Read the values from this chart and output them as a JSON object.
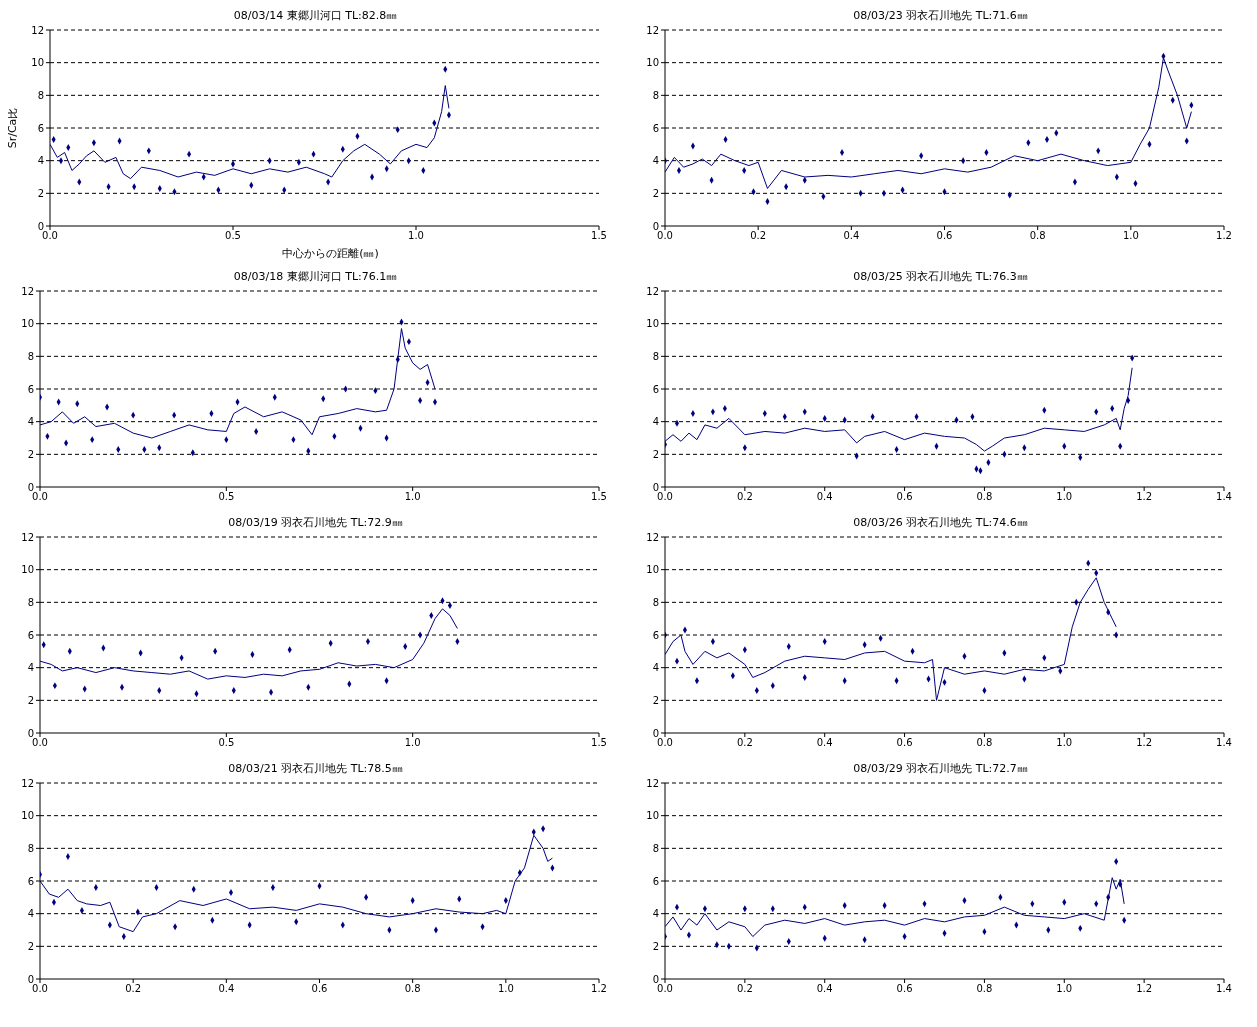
{
  "chart_data": [
    {
      "type": "line",
      "title": "08/03/14 東郷川河口 TL:82.8㎜",
      "xlabel": "中心からの距離(㎜)",
      "ylabel": "Sr/Ca比",
      "xlim": [
        0,
        1.5
      ],
      "xticks": [
        {
          "value": 0,
          "label": "0.0"
        },
        {
          "value": 0.5,
          "label": "0.5"
        },
        {
          "value": 1,
          "label": "1.0"
        },
        {
          "value": 1.5,
          "label": "1.5"
        }
      ],
      "ylim": [
        0,
        12
      ],
      "yticks": [
        0,
        2,
        4,
        6,
        8,
        10,
        12
      ],
      "grid": "y",
      "series": [
        {
          "color": "#000080",
          "marker": "none",
          "x": [
            0,
            0.02,
            0.04,
            0.06,
            0.08,
            0.1,
            0.12,
            0.15,
            0.18,
            0.2,
            0.22,
            0.25,
            0.3,
            0.35,
            0.4,
            0.45,
            0.5,
            0.55,
            0.6,
            0.65,
            0.7,
            0.75,
            0.77,
            0.8,
            0.83,
            0.86,
            0.9,
            0.93,
            0.96,
            1.0,
            1.03,
            1.05,
            1.07,
            1.08,
            1.09
          ],
          "values": [
            5.0,
            4.2,
            4.5,
            3.4,
            3.8,
            4.3,
            4.6,
            3.9,
            4.2,
            3.2,
            2.9,
            3.6,
            3.4,
            3.0,
            3.3,
            3.1,
            3.5,
            3.2,
            3.5,
            3.3,
            3.6,
            3.2,
            3.0,
            4.0,
            4.6,
            5.0,
            4.4,
            3.8,
            4.6,
            5.0,
            4.8,
            5.4,
            7.0,
            8.6,
            7.2
          ]
        },
        {
          "type": "scatter",
          "color": "#000080",
          "marker": "diamond",
          "x": [
            0.01,
            0.03,
            0.05,
            0.08,
            0.12,
            0.16,
            0.19,
            0.23,
            0.27,
            0.3,
            0.34,
            0.38,
            0.42,
            0.46,
            0.5,
            0.55,
            0.6,
            0.64,
            0.68,
            0.72,
            0.76,
            0.8,
            0.84,
            0.88,
            0.92,
            0.95,
            0.98,
            1.02,
            1.05,
            1.08,
            1.09
          ],
          "values": [
            5.3,
            4.0,
            4.8,
            2.7,
            5.1,
            2.4,
            5.2,
            2.4,
            4.6,
            2.3,
            2.1,
            4.4,
            3.0,
            2.2,
            3.8,
            2.5,
            4.0,
            2.2,
            3.9,
            4.4,
            2.7,
            4.7,
            5.5,
            3.0,
            3.5,
            5.9,
            4.0,
            3.4,
            6.3,
            9.6,
            6.8
          ]
        }
      ]
    },
    {
      "type": "line",
      "title": "08/03/23 羽衣石川地先 TL:71.6㎜",
      "xlim": [
        0,
        1.2
      ],
      "xticks": [
        {
          "value": 0,
          "label": "0.0"
        },
        {
          "value": 0.2,
          "label": "0.2"
        },
        {
          "value": 0.4,
          "label": "0.4"
        },
        {
          "value": 0.6,
          "label": "0.6"
        },
        {
          "value": 0.8,
          "label": "0.8"
        },
        {
          "value": 1,
          "label": "1.0"
        },
        {
          "value": 1.2,
          "label": "1.2"
        }
      ],
      "ylim": [
        0,
        12
      ],
      "yticks": [
        0,
        2,
        4,
        6,
        8,
        10,
        12
      ],
      "grid": "y",
      "series": [
        {
          "color": "#000080",
          "marker": "none",
          "x": [
            0,
            0.02,
            0.04,
            0.06,
            0.08,
            0.1,
            0.12,
            0.15,
            0.18,
            0.2,
            0.22,
            0.25,
            0.3,
            0.35,
            0.4,
            0.45,
            0.5,
            0.55,
            0.6,
            0.65,
            0.7,
            0.75,
            0.8,
            0.85,
            0.9,
            0.95,
            1.0,
            1.02,
            1.04,
            1.06,
            1.07,
            1.08,
            1.1,
            1.12,
            1.13
          ],
          "values": [
            3.3,
            4.2,
            3.6,
            3.8,
            4.1,
            3.7,
            4.4,
            4.0,
            3.7,
            3.9,
            2.3,
            3.4,
            3.0,
            3.1,
            3.0,
            3.2,
            3.4,
            3.2,
            3.5,
            3.3,
            3.6,
            4.3,
            4.0,
            4.4,
            4.0,
            3.7,
            3.9,
            5.0,
            6.0,
            8.5,
            10.3,
            9.5,
            8.0,
            6.0,
            7.0
          ]
        },
        {
          "type": "scatter",
          "color": "#000080",
          "marker": "diamond",
          "x": [
            0,
            0.03,
            0.06,
            0.1,
            0.13,
            0.17,
            0.19,
            0.22,
            0.26,
            0.3,
            0.34,
            0.38,
            0.42,
            0.47,
            0.51,
            0.55,
            0.6,
            0.64,
            0.69,
            0.74,
            0.78,
            0.82,
            0.84,
            0.88,
            0.93,
            0.97,
            1.01,
            1.04,
            1.07,
            1.09,
            1.12,
            1.13
          ],
          "values": [
            4.0,
            3.4,
            4.9,
            2.8,
            5.3,
            3.4,
            2.1,
            1.5,
            2.4,
            2.8,
            1.8,
            4.5,
            2.0,
            2.0,
            2.2,
            4.3,
            2.1,
            4.0,
            4.5,
            1.9,
            5.1,
            5.3,
            5.7,
            2.7,
            4.6,
            3.0,
            2.6,
            5.0,
            10.4,
            7.7,
            5.2,
            7.4
          ]
        }
      ]
    },
    {
      "type": "line",
      "title": "08/03/18 東郷川河口 TL:76.1㎜",
      "xlim": [
        0,
        1.5
      ],
      "xticks": [
        {
          "value": 0,
          "label": "0.0"
        },
        {
          "value": 0.5,
          "label": "0.5"
        },
        {
          "value": 1,
          "label": "1.0"
        },
        {
          "value": 1.5,
          "label": "1.5"
        }
      ],
      "ylim": [
        0,
        12
      ],
      "yticks": [
        0,
        2,
        4,
        6,
        8,
        10,
        12
      ],
      "grid": "y",
      "series": [
        {
          "color": "#000080",
          "marker": "none",
          "x": [
            0,
            0.03,
            0.06,
            0.09,
            0.12,
            0.15,
            0.2,
            0.25,
            0.3,
            0.35,
            0.4,
            0.45,
            0.5,
            0.52,
            0.55,
            0.6,
            0.65,
            0.7,
            0.73,
            0.75,
            0.8,
            0.85,
            0.9,
            0.93,
            0.95,
            0.97,
            0.98,
            1.0,
            1.02,
            1.04,
            1.06
          ],
          "values": [
            3.8,
            4.0,
            4.6,
            3.9,
            4.3,
            3.7,
            3.9,
            3.3,
            3.0,
            3.4,
            3.8,
            3.5,
            3.4,
            4.5,
            4.9,
            4.3,
            4.6,
            4.1,
            3.2,
            4.3,
            4.5,
            4.8,
            4.6,
            4.7,
            6.0,
            9.7,
            8.5,
            7.6,
            7.2,
            7.5,
            6.0
          ]
        },
        {
          "type": "scatter",
          "color": "#000080",
          "marker": "diamond",
          "x": [
            0.0,
            0.02,
            0.05,
            0.07,
            0.1,
            0.14,
            0.18,
            0.21,
            0.25,
            0.28,
            0.32,
            0.36,
            0.41,
            0.46,
            0.5,
            0.53,
            0.58,
            0.63,
            0.68,
            0.72,
            0.76,
            0.79,
            0.82,
            0.86,
            0.9,
            0.93,
            0.96,
            0.97,
            0.99,
            1.02,
            1.04,
            1.06
          ],
          "values": [
            5.5,
            3.1,
            5.2,
            2.7,
            5.1,
            2.9,
            4.9,
            2.3,
            4.4,
            2.3,
            2.4,
            4.4,
            2.1,
            4.5,
            2.9,
            5.2,
            3.4,
            5.5,
            2.9,
            2.2,
            5.4,
            3.1,
            6.0,
            3.6,
            5.9,
            3.0,
            7.8,
            10.1,
            8.9,
            5.3,
            6.4,
            5.2
          ]
        }
      ]
    },
    {
      "type": "line",
      "title": "08/03/25 羽衣石川地先 TL:76.3㎜",
      "xlim": [
        0,
        1.4
      ],
      "xticks": [
        {
          "value": 0,
          "label": "0.0"
        },
        {
          "value": 0.2,
          "label": "0.2"
        },
        {
          "value": 0.4,
          "label": "0.4"
        },
        {
          "value": 0.6,
          "label": "0.6"
        },
        {
          "value": 0.8,
          "label": "0.8"
        },
        {
          "value": 1,
          "label": "1.0"
        },
        {
          "value": 1.2,
          "label": "1.2"
        },
        {
          "value": 1.4,
          "label": "1.4"
        }
      ],
      "ylim": [
        0,
        12
      ],
      "yticks": [
        0,
        2,
        4,
        6,
        8,
        10,
        12
      ],
      "grid": "y",
      "series": [
        {
          "color": "#000080",
          "marker": "none",
          "x": [
            0,
            0.02,
            0.04,
            0.06,
            0.08,
            0.1,
            0.13,
            0.16,
            0.2,
            0.25,
            0.3,
            0.35,
            0.4,
            0.45,
            0.48,
            0.5,
            0.55,
            0.6,
            0.65,
            0.7,
            0.75,
            0.78,
            0.8,
            0.82,
            0.85,
            0.9,
            0.95,
            1.0,
            1.05,
            1.1,
            1.13,
            1.14,
            1.15,
            1.16,
            1.17
          ],
          "values": [
            2.8,
            3.2,
            2.8,
            3.3,
            2.9,
            3.8,
            3.6,
            4.2,
            3.2,
            3.4,
            3.3,
            3.6,
            3.4,
            3.5,
            2.7,
            3.1,
            3.4,
            2.9,
            3.3,
            3.1,
            3.0,
            2.6,
            2.2,
            2.5,
            3.0,
            3.2,
            3.6,
            3.5,
            3.4,
            3.8,
            4.2,
            3.5,
            4.8,
            5.6,
            7.3
          ]
        },
        {
          "type": "scatter",
          "color": "#000080",
          "marker": "diamond",
          "x": [
            0,
            0.03,
            0.07,
            0.12,
            0.15,
            0.2,
            0.25,
            0.3,
            0.35,
            0.4,
            0.45,
            0.48,
            0.52,
            0.58,
            0.63,
            0.68,
            0.73,
            0.77,
            0.78,
            0.79,
            0.81,
            0.85,
            0.9,
            0.95,
            1.0,
            1.04,
            1.08,
            1.12,
            1.14,
            1.16,
            1.17
          ],
          "values": [
            2.6,
            3.9,
            4.5,
            4.6,
            4.8,
            2.4,
            4.5,
            4.3,
            4.6,
            4.2,
            4.1,
            1.9,
            4.3,
            2.3,
            4.3,
            2.5,
            4.1,
            4.3,
            1.1,
            1.0,
            1.5,
            2.0,
            2.4,
            4.7,
            2.5,
            1.8,
            4.6,
            4.8,
            2.5,
            5.3,
            7.9
          ]
        }
      ]
    },
    {
      "type": "line",
      "title": "08/03/19 羽衣石川地先 TL:72.9㎜",
      "xlim": [
        0,
        1.5
      ],
      "xticks": [
        {
          "value": 0,
          "label": "0.0"
        },
        {
          "value": 0.5,
          "label": "0.5"
        },
        {
          "value": 1,
          "label": "1.0"
        },
        {
          "value": 1.5,
          "label": "1.5"
        }
      ],
      "ylim": [
        0,
        12
      ],
      "yticks": [
        0,
        2,
        4,
        6,
        8,
        10,
        12
      ],
      "grid": "y",
      "series": [
        {
          "color": "#000080",
          "marker": "none",
          "x": [
            0,
            0.03,
            0.06,
            0.1,
            0.15,
            0.2,
            0.25,
            0.3,
            0.35,
            0.4,
            0.45,
            0.5,
            0.55,
            0.6,
            0.65,
            0.7,
            0.75,
            0.8,
            0.85,
            0.9,
            0.95,
            1.0,
            1.03,
            1.06,
            1.08,
            1.1,
            1.12
          ],
          "values": [
            4.4,
            4.2,
            3.8,
            4.0,
            3.7,
            4.0,
            3.8,
            3.7,
            3.6,
            3.8,
            3.3,
            3.5,
            3.4,
            3.6,
            3.5,
            3.8,
            3.9,
            4.3,
            4.1,
            4.2,
            4.0,
            4.5,
            5.5,
            7.0,
            7.6,
            7.2,
            6.4
          ]
        },
        {
          "type": "scatter",
          "color": "#000080",
          "marker": "diamond",
          "x": [
            0.01,
            0.04,
            0.08,
            0.12,
            0.17,
            0.22,
            0.27,
            0.32,
            0.38,
            0.42,
            0.47,
            0.52,
            0.57,
            0.62,
            0.67,
            0.72,
            0.78,
            0.83,
            0.88,
            0.93,
            0.98,
            1.02,
            1.05,
            1.08,
            1.1,
            1.12
          ],
          "values": [
            5.4,
            2.9,
            5.0,
            2.7,
            5.2,
            2.8,
            4.9,
            2.6,
            4.6,
            2.4,
            5.0,
            2.6,
            4.8,
            2.5,
            5.1,
            2.8,
            5.5,
            3.0,
            5.6,
            3.2,
            5.3,
            6.0,
            7.2,
            8.1,
            7.8,
            5.6
          ]
        }
      ]
    },
    {
      "type": "line",
      "title": "08/03/26 羽衣石川地先 TL:74.6㎜",
      "xlim": [
        0,
        1.4
      ],
      "xticks": [
        {
          "value": 0,
          "label": "0.0"
        },
        {
          "value": 0.2,
          "label": "0.2"
        },
        {
          "value": 0.4,
          "label": "0.4"
        },
        {
          "value": 0.6,
          "label": "0.6"
        },
        {
          "value": 0.8,
          "label": "0.8"
        },
        {
          "value": 1,
          "label": "1.0"
        },
        {
          "value": 1.2,
          "label": "1.2"
        },
        {
          "value": 1.4,
          "label": "1.4"
        }
      ],
      "ylim": [
        0,
        12
      ],
      "yticks": [
        0,
        2,
        4,
        6,
        8,
        10,
        12
      ],
      "grid": "y",
      "series": [
        {
          "color": "#000080",
          "marker": "none",
          "x": [
            0,
            0.02,
            0.04,
            0.05,
            0.07,
            0.1,
            0.13,
            0.16,
            0.2,
            0.22,
            0.25,
            0.3,
            0.35,
            0.4,
            0.45,
            0.5,
            0.55,
            0.6,
            0.65,
            0.67,
            0.68,
            0.7,
            0.75,
            0.8,
            0.85,
            0.9,
            0.95,
            1.0,
            1.02,
            1.04,
            1.06,
            1.08,
            1.1,
            1.12,
            1.13
          ],
          "values": [
            4.8,
            5.6,
            6.0,
            5.0,
            4.2,
            5.0,
            4.6,
            4.9,
            4.2,
            3.4,
            3.7,
            4.4,
            4.7,
            4.6,
            4.5,
            4.9,
            5.0,
            4.4,
            4.3,
            4.5,
            2.0,
            4.0,
            3.6,
            3.8,
            3.6,
            3.9,
            3.8,
            4.2,
            6.5,
            8.0,
            8.8,
            9.5,
            8.0,
            7.0,
            6.5
          ]
        },
        {
          "type": "scatter",
          "color": "#000080",
          "marker": "diamond",
          "x": [
            0,
            0.03,
            0.05,
            0.08,
            0.12,
            0.17,
            0.2,
            0.23,
            0.27,
            0.31,
            0.35,
            0.4,
            0.45,
            0.5,
            0.54,
            0.58,
            0.62,
            0.66,
            0.7,
            0.75,
            0.8,
            0.85,
            0.9,
            0.95,
            0.99,
            1.03,
            1.06,
            1.08,
            1.11,
            1.13
          ],
          "values": [
            6.0,
            4.4,
            6.3,
            3.2,
            5.6,
            3.5,
            5.1,
            2.6,
            2.9,
            5.3,
            3.4,
            5.6,
            3.2,
            5.4,
            5.8,
            3.2,
            5.0,
            3.3,
            3.1,
            4.7,
            2.6,
            4.9,
            3.3,
            4.6,
            3.8,
            8.0,
            10.4,
            9.8,
            7.4,
            6.0
          ]
        }
      ]
    },
    {
      "type": "line",
      "title": "08/03/21 羽衣石川地先 TL:78.5㎜",
      "xlim": [
        0,
        1.2
      ],
      "xticks": [
        {
          "value": 0,
          "label": "0.0"
        },
        {
          "value": 0.2,
          "label": "0.2"
        },
        {
          "value": 0.4,
          "label": "0.4"
        },
        {
          "value": 0.6,
          "label": "0.6"
        },
        {
          "value": 0.8,
          "label": "0.8"
        },
        {
          "value": 1,
          "label": "1.0"
        },
        {
          "value": 1.2,
          "label": "1.2"
        }
      ],
      "ylim": [
        0,
        12
      ],
      "yticks": [
        0,
        2,
        4,
        6,
        8,
        10,
        12
      ],
      "grid": "y",
      "series": [
        {
          "color": "#000080",
          "marker": "none",
          "x": [
            0,
            0.02,
            0.04,
            0.06,
            0.08,
            0.1,
            0.13,
            0.15,
            0.17,
            0.2,
            0.22,
            0.25,
            0.3,
            0.35,
            0.4,
            0.45,
            0.5,
            0.55,
            0.6,
            0.65,
            0.7,
            0.75,
            0.8,
            0.85,
            0.9,
            0.95,
            0.98,
            1.0,
            1.02,
            1.04,
            1.06,
            1.08,
            1.09,
            1.1
          ],
          "values": [
            6.0,
            5.2,
            5.0,
            5.5,
            4.8,
            4.6,
            4.5,
            4.7,
            3.2,
            2.9,
            3.8,
            4.0,
            4.8,
            4.5,
            4.9,
            4.3,
            4.4,
            4.2,
            4.6,
            4.4,
            4.0,
            3.8,
            4.0,
            4.3,
            4.1,
            4.0,
            4.2,
            4.0,
            6.0,
            6.8,
            8.8,
            8.0,
            7.2,
            7.4
          ]
        },
        {
          "type": "scatter",
          "color": "#000080",
          "marker": "diamond",
          "x": [
            0.0,
            0.03,
            0.06,
            0.09,
            0.12,
            0.15,
            0.18,
            0.21,
            0.25,
            0.29,
            0.33,
            0.37,
            0.41,
            0.45,
            0.5,
            0.55,
            0.6,
            0.65,
            0.7,
            0.75,
            0.8,
            0.85,
            0.9,
            0.95,
            1.0,
            1.03,
            1.06,
            1.08,
            1.1
          ],
          "values": [
            6.4,
            4.7,
            7.5,
            4.2,
            5.6,
            3.3,
            2.6,
            4.1,
            5.6,
            3.2,
            5.5,
            3.6,
            5.3,
            3.3,
            5.6,
            3.5,
            5.7,
            3.3,
            5.0,
            3.0,
            4.8,
            3.0,
            4.9,
            3.2,
            4.8,
            6.5,
            9.0,
            9.2,
            6.8
          ]
        }
      ]
    },
    {
      "type": "line",
      "title": "08/03/29 羽衣石川地先 TL:72.7㎜",
      "xlim": [
        0,
        1.4
      ],
      "xticks": [
        {
          "value": 0,
          "label": "0.0"
        },
        {
          "value": 0.2,
          "label": "0.2"
        },
        {
          "value": 0.4,
          "label": "0.4"
        },
        {
          "value": 0.6,
          "label": "0.6"
        },
        {
          "value": 0.8,
          "label": "0.8"
        },
        {
          "value": 1,
          "label": "1.0"
        },
        {
          "value": 1.2,
          "label": "1.2"
        },
        {
          "value": 1.4,
          "label": "1.4"
        }
      ],
      "ylim": [
        0,
        12
      ],
      "yticks": [
        0,
        2,
        4,
        6,
        8,
        10,
        12
      ],
      "grid": "y",
      "series": [
        {
          "color": "#000080",
          "marker": "none",
          "x": [
            0,
            0.02,
            0.04,
            0.06,
            0.08,
            0.1,
            0.13,
            0.16,
            0.2,
            0.22,
            0.25,
            0.3,
            0.35,
            0.4,
            0.45,
            0.5,
            0.55,
            0.6,
            0.65,
            0.7,
            0.75,
            0.8,
            0.85,
            0.9,
            0.95,
            1.0,
            1.05,
            1.1,
            1.12,
            1.13,
            1.14,
            1.15
          ],
          "values": [
            3.2,
            3.8,
            3.0,
            3.7,
            3.3,
            4.0,
            3.0,
            3.5,
            3.2,
            2.6,
            3.3,
            3.6,
            3.4,
            3.7,
            3.3,
            3.5,
            3.6,
            3.3,
            3.7,
            3.5,
            3.8,
            3.9,
            4.4,
            3.9,
            3.8,
            3.7,
            4.0,
            3.6,
            6.2,
            5.5,
            6.1,
            4.6
          ]
        },
        {
          "type": "scatter",
          "color": "#000080",
          "marker": "diamond",
          "x": [
            0,
            0.03,
            0.06,
            0.1,
            0.13,
            0.16,
            0.2,
            0.23,
            0.27,
            0.31,
            0.35,
            0.4,
            0.45,
            0.5,
            0.55,
            0.6,
            0.65,
            0.7,
            0.75,
            0.8,
            0.84,
            0.88,
            0.92,
            0.96,
            1.0,
            1.04,
            1.08,
            1.11,
            1.13,
            1.14,
            1.15
          ],
          "values": [
            2.6,
            4.4,
            2.7,
            4.3,
            2.1,
            2.0,
            4.3,
            1.9,
            4.3,
            2.3,
            4.4,
            2.5,
            4.5,
            2.4,
            4.5,
            2.6,
            4.6,
            2.8,
            4.8,
            2.9,
            5.0,
            3.3,
            4.6,
            3.0,
            4.7,
            3.1,
            4.6,
            5.0,
            7.2,
            5.8,
            3.6
          ]
        }
      ]
    }
  ]
}
